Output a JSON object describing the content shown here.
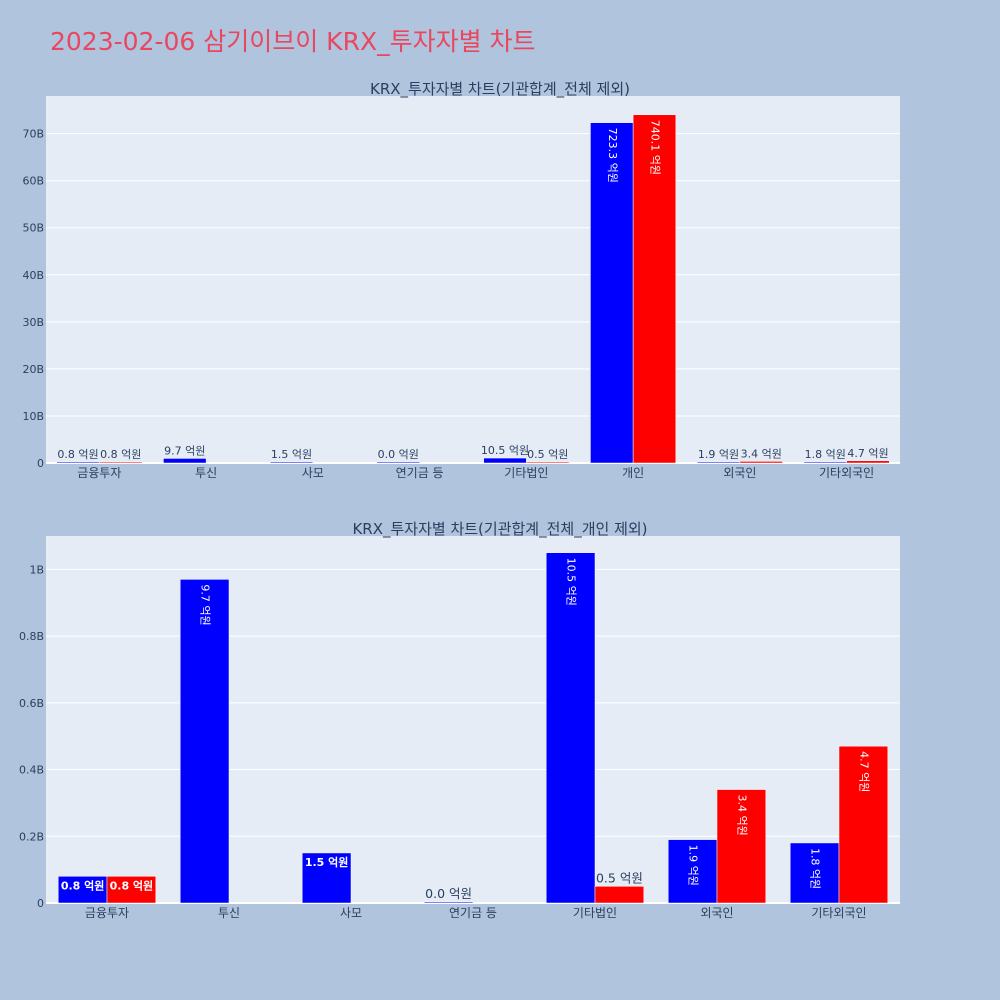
{
  "page_title": "2023-02-06 삼기이브이 KRX_투자자별 차트",
  "colors": {
    "buy": "#0000ff",
    "sell": "#ff0000",
    "background": "#b0c4de",
    "plot_bg": "#e5ecf6",
    "title": "#e8475f"
  },
  "chart_data": [
    {
      "type": "bar",
      "title": "KRX_투자자별 차트(기관합계_전체 제외)",
      "categories": [
        "금융투자",
        "투신",
        "사모",
        "연기금 등",
        "기타법인",
        "개인",
        "외국인",
        "기타외국인"
      ],
      "series": [
        {
          "color": "#0000ff",
          "values": [
            0.08,
            0.97,
            0.15,
            0.0,
            1.05,
            72.33,
            0.19,
            0.18
          ],
          "labels": [
            "0.8 억원",
            "9.7 억원",
            "1.5 억원",
            "0.0 억원",
            "10.5 억원",
            "723.3 억원",
            "1.9 억원",
            "1.8 억원"
          ]
        },
        {
          "color": "#ff0000",
          "values": [
            0.08,
            null,
            null,
            null,
            0.05,
            74.01,
            0.34,
            0.47
          ],
          "labels": [
            "0.8 억원",
            null,
            null,
            null,
            "0.5 억원",
            "740.1 억원",
            "3.4 억원",
            "4.7 억원"
          ]
        }
      ],
      "value_unit": "B",
      "ylim": [
        0,
        78
      ],
      "yticks": [
        "0",
        "10B",
        "20B",
        "30B",
        "40B",
        "50B",
        "60B",
        "70B"
      ],
      "ytick_values": [
        0,
        10,
        20,
        30,
        40,
        50,
        60,
        70
      ],
      "grid": true,
      "legend": "none"
    },
    {
      "type": "bar",
      "title": "KRX_투자자별 차트(기관합계_전체_개인 제외)",
      "categories": [
        "금융투자",
        "투신",
        "사모",
        "연기금 등",
        "기타법인",
        "외국인",
        "기타외국인"
      ],
      "series": [
        {
          "color": "#0000ff",
          "values": [
            0.08,
            0.97,
            0.15,
            0.0,
            1.05,
            0.19,
            0.18
          ],
          "labels": [
            "0.8 억원",
            "9.7 억원",
            "1.5 억원",
            "0.0 억원",
            "10.5 억원",
            "1.9 억원",
            "1.8 억원"
          ]
        },
        {
          "color": "#ff0000",
          "values": [
            0.08,
            null,
            null,
            null,
            0.05,
            0.34,
            0.47
          ],
          "labels": [
            "0.8 억원",
            null,
            null,
            null,
            "0.5 억원",
            "3.4 억원",
            "4.7 억원"
          ]
        }
      ],
      "value_unit": "B",
      "ylim": [
        0,
        1.1
      ],
      "yticks": [
        "0",
        "0.2B",
        "0.4B",
        "0.6B",
        "0.8B",
        "1B"
      ],
      "ytick_values": [
        0,
        0.2,
        0.4,
        0.6,
        0.8,
        1.0
      ],
      "grid": true,
      "legend": "none"
    }
  ]
}
